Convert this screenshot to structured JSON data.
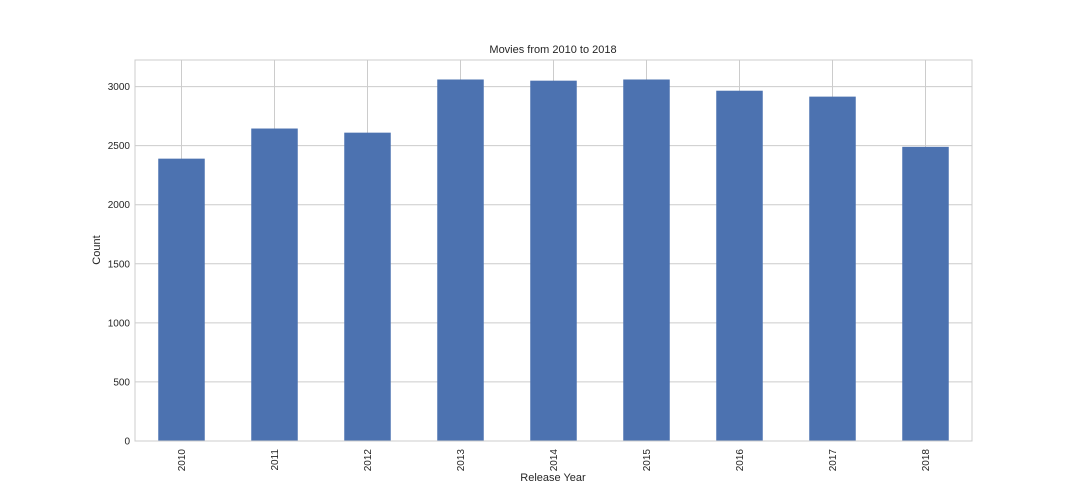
{
  "chart_data": {
    "type": "bar",
    "title": "Movies from 2010 to 2018",
    "xlabel": "Release Year",
    "ylabel": "Count",
    "categories": [
      "2010",
      "2011",
      "2012",
      "2013",
      "2014",
      "2015",
      "2016",
      "2017",
      "2018"
    ],
    "values": [
      2390,
      2645,
      2610,
      3060,
      3050,
      3060,
      2965,
      2915,
      2490
    ],
    "ylim": [
      0,
      3225
    ],
    "yticks": [
      0,
      500,
      1000,
      1500,
      2000,
      2500,
      3000
    ],
    "grid": true,
    "legend": "none",
    "bar_color": "#4c72b0",
    "grid_color": "#cccccc"
  }
}
